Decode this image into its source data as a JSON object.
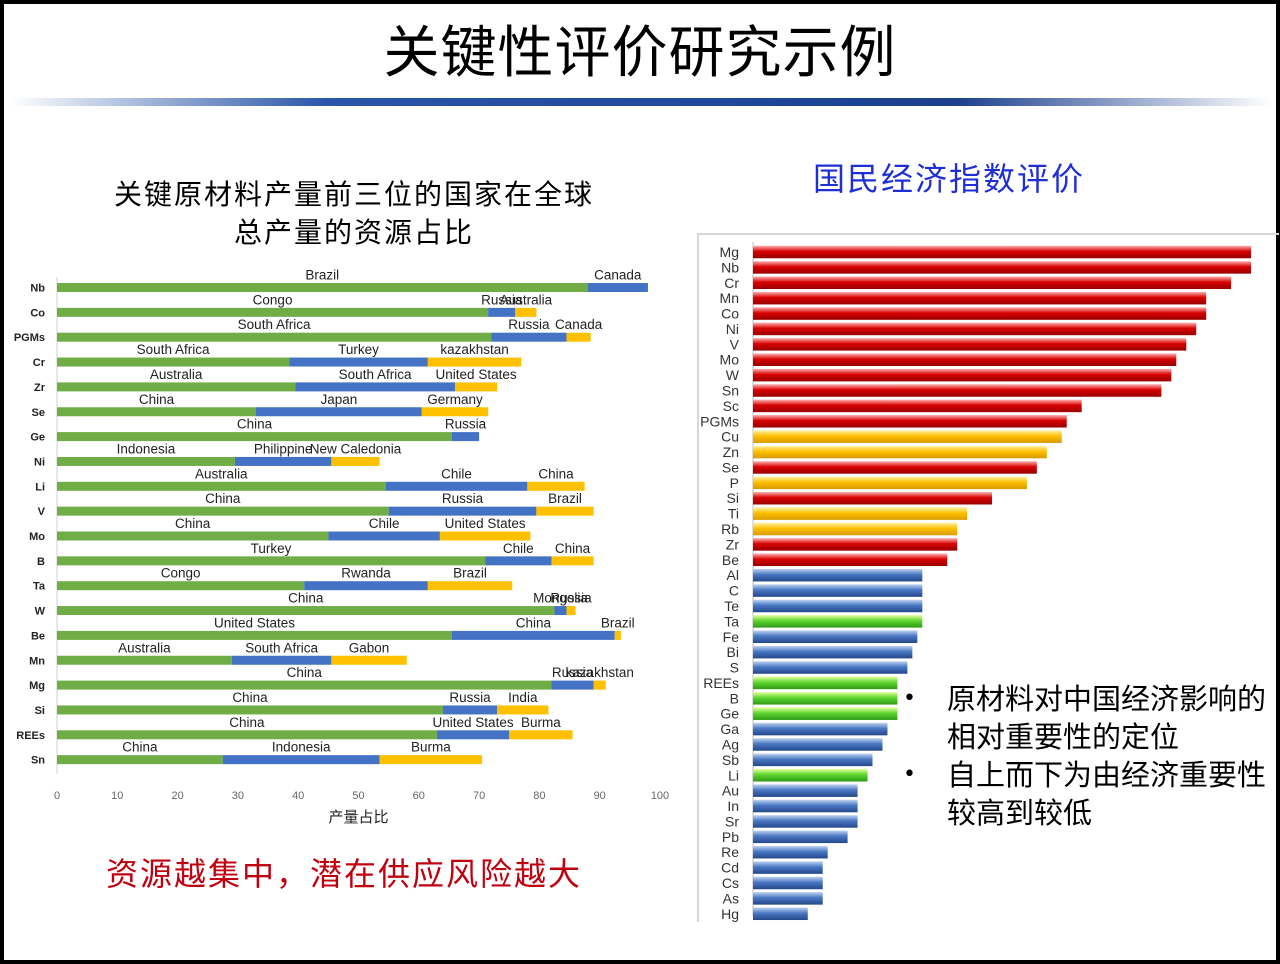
{
  "slide": {
    "title": "关键性评价研究示例",
    "left_title_line1": "关键原材料产量前三位的国家在全球",
    "left_title_line2": "总产量的资源占比",
    "right_title": "国民经济指数评价",
    "conclusion": "资源越集中，潜在供应风险越大",
    "notes": [
      "原材料对中国经济影响的相对重要性的定位",
      "自上而下为由经济重要性较高到较低"
    ]
  },
  "colors": {
    "green": "#70ad47",
    "blue": "#4472c4",
    "gold": "#ffc000",
    "red": "#d40000"
  },
  "chart_data": [
    {
      "type": "bar",
      "orientation": "horizontal",
      "stacked": true,
      "title": "关键原材料产量前三位的国家在全球总产量的资源占比",
      "xlabel": "产量占比",
      "xlim": [
        0,
        100
      ],
      "xticks": [
        0,
        10,
        20,
        30,
        40,
        50,
        60,
        70,
        80,
        90,
        100
      ],
      "categories": [
        "Nb",
        "Co",
        "PGMs",
        "Cr",
        "Zr",
        "Se",
        "Ge",
        "Ni",
        "Li",
        "V",
        "Mo",
        "B",
        "Ta",
        "W",
        "Be",
        "Mn",
        "Mg",
        "Si",
        "REEs",
        "Sn"
      ],
      "rows": [
        {
          "material": "Nb",
          "segments": [
            {
              "country": "Brazil",
              "value": 88
            },
            {
              "country": "Canada",
              "value": 10
            }
          ]
        },
        {
          "material": "Co",
          "segments": [
            {
              "country": "Congo",
              "value": 71.5
            },
            {
              "country": "Russia",
              "value": 4.5
            },
            {
              "country": "Australia",
              "value": 3.5
            }
          ]
        },
        {
          "material": "PGMs",
          "segments": [
            {
              "country": "South Africa",
              "value": 72
            },
            {
              "country": "Russia",
              "value": 12.5
            },
            {
              "country": "Canada",
              "value": 4
            }
          ]
        },
        {
          "material": "Cr",
          "segments": [
            {
              "country": "South Africa",
              "value": 38.5
            },
            {
              "country": "Turkey",
              "value": 23
            },
            {
              "country": "kazakhstan",
              "value": 15.5
            }
          ]
        },
        {
          "material": "Zr",
          "segments": [
            {
              "country": "Australia",
              "value": 39.5
            },
            {
              "country": "South Africa",
              "value": 26.5
            },
            {
              "country": "United States",
              "value": 7
            }
          ]
        },
        {
          "material": "Se",
          "segments": [
            {
              "country": "China",
              "value": 33
            },
            {
              "country": "Japan",
              "value": 27.5
            },
            {
              "country": "Germany",
              "value": 11
            }
          ]
        },
        {
          "material": "Ge",
          "segments": [
            {
              "country": "China",
              "value": 65.5
            },
            {
              "country": "Russia",
              "value": 4.5
            }
          ]
        },
        {
          "material": "Ni",
          "segments": [
            {
              "country": "Indonesia",
              "value": 29.5
            },
            {
              "country": "Philippine",
              "value": 16
            },
            {
              "country": "New Caledonia",
              "value": 8
            }
          ]
        },
        {
          "material": "Li",
          "segments": [
            {
              "country": "Australia",
              "value": 54.5
            },
            {
              "country": "Chile",
              "value": 23.5
            },
            {
              "country": "China",
              "value": 9.5
            }
          ]
        },
        {
          "material": "V",
          "segments": [
            {
              "country": "China",
              "value": 55
            },
            {
              "country": "Russia",
              "value": 24.5
            },
            {
              "country": "Brazil",
              "value": 9.5
            }
          ]
        },
        {
          "material": "Mo",
          "segments": [
            {
              "country": "China",
              "value": 45
            },
            {
              "country": "Chile",
              "value": 18.5
            },
            {
              "country": "United States",
              "value": 15
            }
          ]
        },
        {
          "material": "B",
          "segments": [
            {
              "country": "Turkey",
              "value": 71
            },
            {
              "country": "Chile",
              "value": 11
            },
            {
              "country": "China",
              "value": 7
            }
          ]
        },
        {
          "material": "Ta",
          "segments": [
            {
              "country": "Congo",
              "value": 41
            },
            {
              "country": "Rwanda",
              "value": 20.5
            },
            {
              "country": "Brazil",
              "value": 14
            }
          ]
        },
        {
          "material": "W",
          "segments": [
            {
              "country": "China",
              "value": 82.5
            },
            {
              "country": "Mongolia",
              "value": 2
            },
            {
              "country": "Russia",
              "value": 1.5
            }
          ]
        },
        {
          "material": "Be",
          "segments": [
            {
              "country": "United States",
              "value": 65.5
            },
            {
              "country": "China",
              "value": 27
            },
            {
              "country": "Brazil",
              "value": 1
            }
          ]
        },
        {
          "material": "Mn",
          "segments": [
            {
              "country": "Australia",
              "value": 29
            },
            {
              "country": "South Africa",
              "value": 16.5
            },
            {
              "country": "Gabon",
              "value": 12.5
            }
          ]
        },
        {
          "material": "Mg",
          "segments": [
            {
              "country": "China",
              "value": 82
            },
            {
              "country": "Russia",
              "value": 7
            },
            {
              "country": "kazakhstan",
              "value": 2
            }
          ]
        },
        {
          "material": "Si",
          "segments": [
            {
              "country": "China",
              "value": 64
            },
            {
              "country": "Russia",
              "value": 9
            },
            {
              "country": "India",
              "value": 8.5
            }
          ]
        },
        {
          "material": "REEs",
          "segments": [
            {
              "country": "China",
              "value": 63
            },
            {
              "country": "United States",
              "value": 12
            },
            {
              "country": "Burma",
              "value": 10.5
            }
          ]
        },
        {
          "material": "Sn",
          "segments": [
            {
              "country": "China",
              "value": 27.5
            },
            {
              "country": "Indonesia",
              "value": 26
            },
            {
              "country": "Burma",
              "value": 17
            }
          ]
        }
      ]
    },
    {
      "type": "bar",
      "orientation": "horizontal",
      "title": "国民经济指数评价",
      "categories": [
        "Mg",
        "Nb",
        "Cr",
        "Mn",
        "Co",
        "Ni",
        "V",
        "Mo",
        "W",
        "Sn",
        "Sc",
        "PGMs",
        "Cu",
        "Zn",
        "Se",
        "P",
        "Si",
        "Ti",
        "Rb",
        "Zr",
        "Be",
        "Al",
        "C",
        "Te",
        "Ta",
        "Fe",
        "Bi",
        "S",
        "REEs",
        "B",
        "Ge",
        "Ga",
        "Ag",
        "Sb",
        "Li",
        "Au",
        "In",
        "Sr",
        "Pb",
        "Re",
        "Cd",
        "Cs",
        "As",
        "Hg"
      ],
      "values": [
        100,
        100,
        96,
        91,
        91,
        89,
        87,
        85,
        84,
        82,
        66,
        63,
        62,
        59,
        57,
        55,
        48,
        43,
        41,
        41,
        39,
        34,
        34,
        34,
        34,
        33,
        32,
        31,
        29,
        29,
        29,
        27,
        26,
        24,
        23,
        21,
        21,
        21,
        19,
        15,
        14,
        14,
        14,
        11
      ],
      "color_groups": [
        "red",
        "red",
        "red",
        "red",
        "red",
        "red",
        "red",
        "red",
        "red",
        "red",
        "red",
        "red",
        "gold",
        "gold",
        "red",
        "gold",
        "red",
        "gold",
        "gold",
        "red",
        "red",
        "blue",
        "blue",
        "blue",
        "green",
        "blue",
        "blue",
        "blue",
        "green",
        "green",
        "green",
        "blue",
        "blue",
        "blue",
        "green",
        "blue",
        "blue",
        "blue",
        "blue",
        "blue",
        "blue",
        "blue",
        "blue",
        "blue"
      ]
    }
  ]
}
